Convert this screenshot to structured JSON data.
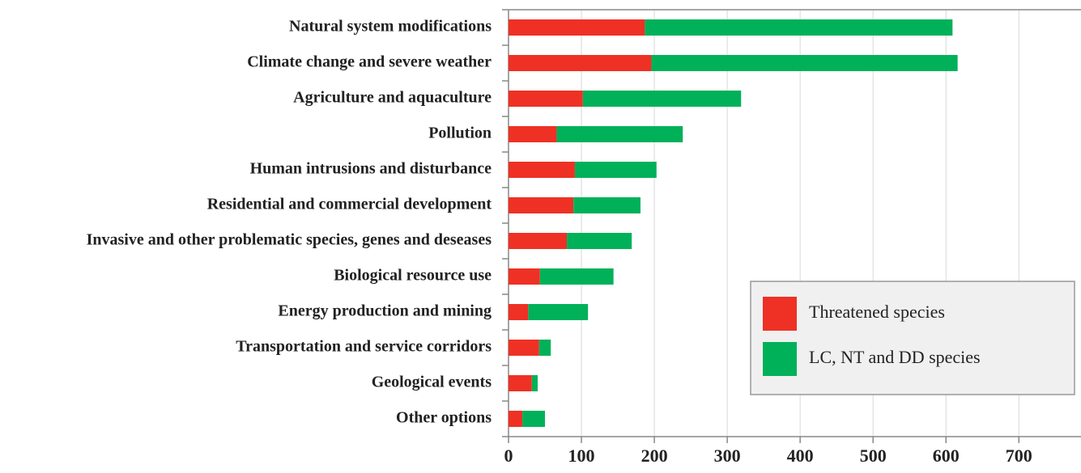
{
  "chart_data": {
    "type": "stacked-barh",
    "categories": [
      "Natural system modifications",
      "Climate change and severe weather",
      "Agriculture and aquaculture",
      "Pollution",
      "Human intrusions and disturbance",
      "Residential and commercial development",
      "Invasive and other problematic species, genes and deseases",
      "Biological resource use",
      "Energy production and mining",
      "Transportation and service corridors",
      "Geological events",
      "Other options"
    ],
    "series": [
      {
        "name": "Threatened species",
        "color": "#ee3124",
        "values": [
          187,
          196,
          102,
          66,
          91,
          89,
          80,
          43,
          27,
          42,
          32,
          19
        ]
      },
      {
        "name": "LC, NT and DD species",
        "color": "#00b159",
        "values": [
          422,
          420,
          217,
          173,
          112,
          92,
          89,
          101,
          82,
          16,
          8,
          31
        ]
      }
    ],
    "xlim": [
      0,
      783
    ],
    "xticks": [
      0,
      100,
      200,
      300,
      400,
      500,
      600,
      700
    ],
    "grid": true,
    "legend": "lower right"
  }
}
